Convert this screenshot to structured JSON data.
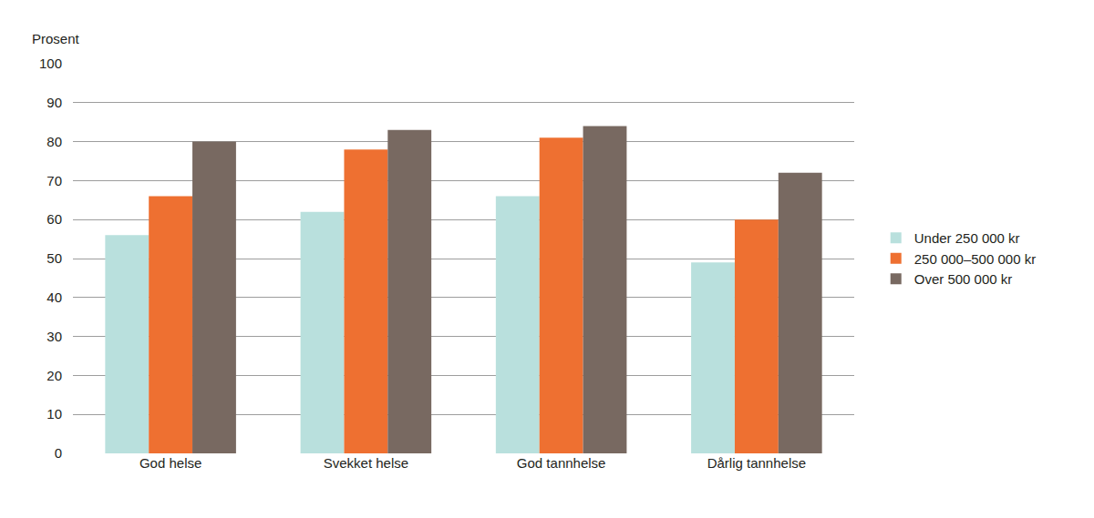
{
  "chart_data": {
    "type": "bar",
    "ylabel": "Prosent",
    "categories": [
      "God helse",
      "Svekket helse",
      "God tannhelse",
      "Dårlig tannhelse"
    ],
    "series": [
      {
        "name": "Under 250 000 kr",
        "color": "#b9e0dd",
        "values": [
          56,
          62,
          66,
          49
        ]
      },
      {
        "name": "250 000–500 000 kr",
        "color": "#ee7031",
        "values": [
          66,
          78,
          81,
          60
        ]
      },
      {
        "name": "Over 500 000 kr",
        "color": "#786961",
        "values": [
          80,
          83,
          84,
          72
        ]
      }
    ],
    "ylim": [
      0,
      100
    ],
    "yticks": [
      0,
      10,
      20,
      30,
      40,
      50,
      60,
      70,
      80,
      90,
      100
    ],
    "grid": true,
    "legend": "right"
  }
}
